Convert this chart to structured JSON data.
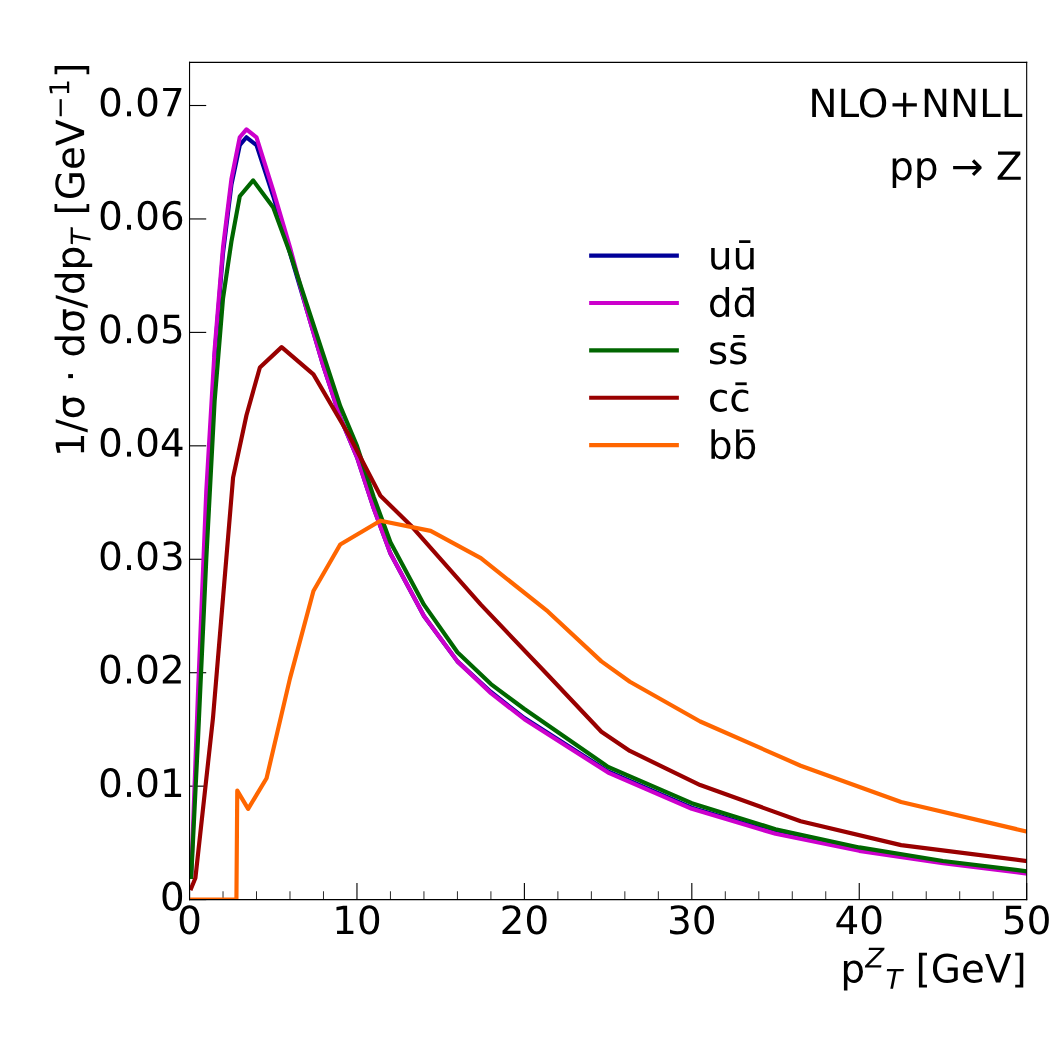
{
  "chart_data": {
    "type": "line",
    "xlabel": "p$^{Z}$$_{T}$ [GeV]",
    "ylabel": "1/σ · dσ/dp$_{T}$ [GeV$^{−1}$]",
    "annotations": [
      "NLO+NNLL",
      "pp → Z"
    ],
    "xlim": [
      0,
      50
    ],
    "ylim": [
      0,
      0.0738
    ],
    "xticks": [
      0,
      10,
      20,
      30,
      40,
      50
    ],
    "yticks": [
      0,
      0.01,
      0.02,
      0.03,
      0.04,
      0.05,
      0.06,
      0.07
    ],
    "grid": false,
    "legend": "top right",
    "marker": "none",
    "line_style": "solid",
    "series": [
      {
        "name": "uū",
        "color": "#000099",
        "x": [
          1.5,
          2,
          2.5,
          3,
          3.4,
          4,
          5,
          6,
          7,
          8,
          9,
          10,
          11,
          12,
          14,
          16,
          18,
          20,
          25,
          30,
          35,
          40
        ],
        "values": [
          0.048,
          0.057,
          0.063,
          0.0665,
          0.0672,
          0.0665,
          0.062,
          0.057,
          0.052,
          0.047,
          0.0425,
          0.039,
          0.0345,
          0.0305,
          0.025,
          0.021,
          0.0183,
          0.016,
          0.0113,
          0.0081,
          0.0059,
          0.0044
        ]
      },
      {
        "name": "dd̄",
        "color": "#cc00cc",
        "x": [
          0.1,
          0.5,
          1,
          1.5,
          2,
          2.5,
          3,
          3.4,
          4,
          5,
          6,
          7,
          8,
          9,
          10,
          11,
          12,
          14,
          16,
          18,
          20,
          25,
          30,
          35,
          40,
          45,
          50
        ],
        "values": [
          0.002,
          0.018,
          0.036,
          0.0485,
          0.0575,
          0.0635,
          0.0672,
          0.0679,
          0.0672,
          0.0625,
          0.0575,
          0.052,
          0.047,
          0.0425,
          0.039,
          0.0345,
          0.0305,
          0.025,
          0.021,
          0.0182,
          0.0159,
          0.0112,
          0.008,
          0.0058,
          0.0043,
          0.0032,
          0.0023
        ]
      },
      {
        "name": "ss̄",
        "color": "#006600",
        "x": [
          0.1,
          0.5,
          1,
          1.5,
          2,
          2.5,
          3,
          3.8,
          5,
          6,
          7,
          8,
          9,
          10,
          11,
          12,
          14,
          16,
          18,
          20,
          25,
          30,
          35,
          40,
          45,
          50
        ],
        "values": [
          0.002,
          0.014,
          0.03,
          0.044,
          0.053,
          0.058,
          0.062,
          0.0634,
          0.061,
          0.057,
          0.0525,
          0.048,
          0.0435,
          0.04,
          0.0355,
          0.0315,
          0.026,
          0.0218,
          0.019,
          0.0168,
          0.0117,
          0.0085,
          0.0062,
          0.0046,
          0.0034,
          0.0025
        ]
      },
      {
        "name": "cc̄",
        "color": "#990000",
        "x": [
          0.1,
          0.35,
          1.4,
          2.6,
          3.4,
          4.2,
          5.5,
          7.4,
          9.5,
          11.4,
          13.2,
          17.4,
          21.4,
          24.6,
          26.3,
          30.5,
          36.5,
          42.5,
          50
        ],
        "values": [
          0.001,
          0.0019,
          0.016,
          0.0372,
          0.0427,
          0.0469,
          0.0487,
          0.0463,
          0.041,
          0.0356,
          0.033,
          0.026,
          0.0198,
          0.0148,
          0.0131,
          0.0101,
          0.0069,
          0.0048,
          0.0034
        ]
      },
      {
        "name": "bb̄",
        "color": "#ff6600",
        "x": [
          0,
          2.8,
          2.85,
          3.5,
          4.6,
          6.0,
          7.4,
          9.0,
          11.4,
          14.4,
          17.4,
          21.4,
          24.6,
          26.3,
          30.5,
          36.5,
          42.5,
          50
        ],
        "values": [
          0,
          0,
          0.0096,
          0.008,
          0.0107,
          0.0195,
          0.0272,
          0.0313,
          0.0334,
          0.0325,
          0.0301,
          0.0254,
          0.021,
          0.0192,
          0.0157,
          0.0118,
          0.0086,
          0.006
        ]
      }
    ]
  }
}
